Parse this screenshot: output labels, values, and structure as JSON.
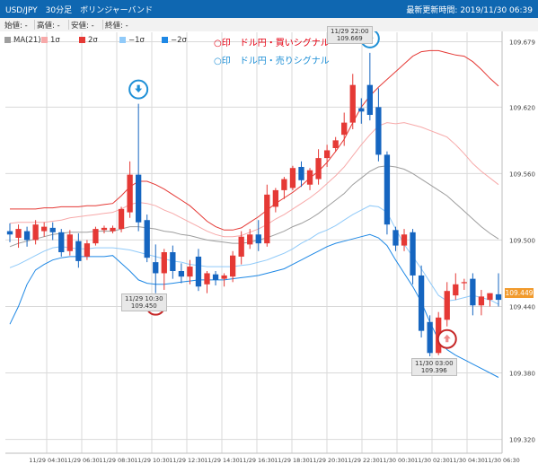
{
  "header": {
    "title": "USD/JPY　30分足　ボリンジャーバンド",
    "updated": "最新更新時間: 2019/11/30 06:39"
  },
  "ohlc": [
    {
      "label": "始値",
      "value": "-"
    },
    {
      "label": "高値",
      "value": "-"
    },
    {
      "label": "安値",
      "value": "-"
    },
    {
      "label": "終値",
      "value": "-"
    }
  ],
  "legend": [
    {
      "label": "MA(21)",
      "color": "#9e9e9e"
    },
    {
      "label": "1σ",
      "color": "#f7a9a9"
    },
    {
      "label": "2σ",
      "color": "#e53935"
    },
    {
      "label": "−1σ",
      "color": "#90caf9"
    },
    {
      "label": "−2σ",
      "color": "#1e88e5"
    }
  ],
  "signals": {
    "buy": "○印　ドル円・買いシグナル",
    "sell": "○印　ドル円・売りシグナル"
  },
  "callouts": [
    {
      "time": "11/29 22:00",
      "price": "109.669"
    },
    {
      "time": "11/29 10:30",
      "price": "109.450"
    },
    {
      "time": "11/30 03:00",
      "price": "109.396"
    }
  ],
  "current_price": "109.449",
  "chart_data": {
    "type": "candlestick",
    "x_tick_labels": [
      "11/29 04:30",
      "11/29 06:30",
      "11/29 08:30",
      "11/29 10:30",
      "11/29 12:30",
      "11/29 14:30",
      "11/29 16:30",
      "11/29 18:30",
      "11/29 20:30",
      "11/29 22:30",
      "11/30 00:30",
      "11/30 02:30",
      "11/30 04:30",
      "11/30 06:30"
    ],
    "y_tick_labels": [
      "109.679",
      "109.620",
      "109.560",
      "109.500",
      "109.440",
      "109.380",
      "109.320"
    ],
    "ylim": [
      109.3075,
      109.7005
    ],
    "up_color": "#e53935",
    "down_color": "#1565c0",
    "candles": [
      {
        "o": 109.508,
        "h": 109.515,
        "l": 109.498,
        "c": 109.505
      },
      {
        "o": 109.502,
        "h": 109.514,
        "l": 109.493,
        "c": 109.51
      },
      {
        "o": 109.508,
        "h": 109.512,
        "l": 109.494,
        "c": 109.5
      },
      {
        "o": 109.5,
        "h": 109.518,
        "l": 109.496,
        "c": 109.514
      },
      {
        "o": 109.508,
        "h": 109.516,
        "l": 109.503,
        "c": 109.512
      },
      {
        "o": 109.511,
        "h": 109.516,
        "l": 109.5,
        "c": 109.507
      },
      {
        "o": 109.507,
        "h": 109.51,
        "l": 109.485,
        "c": 109.489
      },
      {
        "o": 109.49,
        "h": 109.509,
        "l": 109.486,
        "c": 109.505
      },
      {
        "o": 109.499,
        "h": 109.506,
        "l": 109.475,
        "c": 109.481
      },
      {
        "o": 109.485,
        "h": 109.5,
        "l": 109.482,
        "c": 109.497
      },
      {
        "o": 109.497,
        "h": 109.512,
        "l": 109.495,
        "c": 109.51
      },
      {
        "o": 109.509,
        "h": 109.513,
        "l": 109.506,
        "c": 109.511
      },
      {
        "o": 109.508,
        "h": 109.513,
        "l": 109.506,
        "c": 109.511
      },
      {
        "o": 109.51,
        "h": 109.53,
        "l": 109.507,
        "c": 109.528
      },
      {
        "o": 109.525,
        "h": 109.571,
        "l": 109.52,
        "c": 109.559
      },
      {
        "o": 109.559,
        "h": 109.623,
        "l": 109.508,
        "c": 109.516
      },
      {
        "o": 109.518,
        "h": 109.523,
        "l": 109.48,
        "c": 109.484
      },
      {
        "o": 109.48,
        "h": 109.496,
        "l": 109.452,
        "c": 109.47
      },
      {
        "o": 109.47,
        "h": 109.492,
        "l": 109.455,
        "c": 109.489
      },
      {
        "o": 109.489,
        "h": 109.495,
        "l": 109.465,
        "c": 109.472
      },
      {
        "o": 109.472,
        "h": 109.479,
        "l": 109.461,
        "c": 109.467
      },
      {
        "o": 109.467,
        "h": 109.482,
        "l": 109.46,
        "c": 109.476
      },
      {
        "o": 109.485,
        "h": 109.492,
        "l": 109.454,
        "c": 109.458
      },
      {
        "o": 109.46,
        "h": 109.472,
        "l": 109.452,
        "c": 109.47
      },
      {
        "o": 109.469,
        "h": 109.472,
        "l": 109.459,
        "c": 109.464
      },
      {
        "o": 109.465,
        "h": 109.47,
        "l": 109.458,
        "c": 109.468
      },
      {
        "o": 109.467,
        "h": 109.49,
        "l": 109.462,
        "c": 109.486
      },
      {
        "o": 109.485,
        "h": 109.508,
        "l": 109.478,
        "c": 109.503
      },
      {
        "o": 109.496,
        "h": 109.51,
        "l": 109.492,
        "c": 109.505
      },
      {
        "o": 109.505,
        "h": 109.518,
        "l": 109.49,
        "c": 109.497
      },
      {
        "o": 109.497,
        "h": 109.55,
        "l": 109.494,
        "c": 109.541
      },
      {
        "o": 109.53,
        "h": 109.547,
        "l": 109.525,
        "c": 109.545
      },
      {
        "o": 109.545,
        "h": 109.557,
        "l": 109.537,
        "c": 109.555
      },
      {
        "o": 109.547,
        "h": 109.567,
        "l": 109.545,
        "c": 109.565
      },
      {
        "o": 109.566,
        "h": 109.571,
        "l": 109.548,
        "c": 109.554
      },
      {
        "o": 109.55,
        "h": 109.565,
        "l": 109.545,
        "c": 109.563
      },
      {
        "o": 109.555,
        "h": 109.582,
        "l": 109.55,
        "c": 109.574
      },
      {
        "o": 109.574,
        "h": 109.586,
        "l": 109.566,
        "c": 109.581
      },
      {
        "o": 109.583,
        "h": 109.593,
        "l": 109.58,
        "c": 109.59
      },
      {
        "o": 109.595,
        "h": 109.615,
        "l": 109.585,
        "c": 109.606
      },
      {
        "o": 109.606,
        "h": 109.65,
        "l": 109.6,
        "c": 109.64
      },
      {
        "o": 109.619,
        "h": 109.628,
        "l": 109.605,
        "c": 109.616
      },
      {
        "o": 109.64,
        "h": 109.669,
        "l": 109.608,
        "c": 109.613
      },
      {
        "o": 109.62,
        "h": 109.637,
        "l": 109.571,
        "c": 109.577
      },
      {
        "o": 109.577,
        "h": 109.58,
        "l": 109.505,
        "c": 109.514
      },
      {
        "o": 109.509,
        "h": 109.512,
        "l": 109.49,
        "c": 109.495
      },
      {
        "o": 109.495,
        "h": 109.51,
        "l": 109.49,
        "c": 109.505
      },
      {
        "o": 109.507,
        "h": 109.51,
        "l": 109.46,
        "c": 109.468
      },
      {
        "o": 109.468,
        "h": 109.477,
        "l": 109.412,
        "c": 109.418
      },
      {
        "o": 109.426,
        "h": 109.432,
        "l": 109.395,
        "c": 109.398
      },
      {
        "o": 109.398,
        "h": 109.435,
        "l": 109.396,
        "c": 109.43
      },
      {
        "o": 109.428,
        "h": 109.462,
        "l": 109.422,
        "c": 109.454
      },
      {
        "o": 109.45,
        "h": 109.47,
        "l": 109.446,
        "c": 109.46
      },
      {
        "o": 109.461,
        "h": 109.465,
        "l": 109.455,
        "c": 109.462
      },
      {
        "o": 109.465,
        "h": 109.47,
        "l": 109.432,
        "c": 109.441
      },
      {
        "o": 109.441,
        "h": 109.455,
        "l": 109.432,
        "c": 109.449
      },
      {
        "o": 109.446,
        "h": 109.452,
        "l": 109.44,
        "c": 109.452
      },
      {
        "o": 109.451,
        "h": 109.47,
        "l": 109.44,
        "c": 109.446
      }
    ],
    "series": [
      {
        "name": "MA(21)",
        "color": "#9e9e9e",
        "values": [
          109.494,
          109.497,
          109.499,
          109.501,
          109.503,
          109.505,
          109.506,
          109.507,
          109.507,
          109.507,
          109.508,
          109.508,
          109.508,
          109.51,
          109.512,
          109.512,
          109.511,
          109.51,
          109.508,
          109.507,
          109.505,
          109.504,
          109.502,
          109.5,
          109.499,
          109.498,
          109.497,
          109.497,
          109.498,
          109.5,
          109.502,
          109.505,
          109.508,
          109.512,
          109.515,
          109.519,
          109.524,
          109.53,
          109.536,
          109.542,
          109.55,
          109.556,
          109.562,
          109.566,
          109.567,
          109.566,
          109.564,
          109.56,
          109.555,
          109.55,
          109.545,
          109.54,
          109.533,
          109.526,
          109.519,
          109.512,
          109.506,
          109.501
        ]
      },
      {
        "name": "1σ",
        "color": "#f7a9a9",
        "values": [
          109.515,
          109.516,
          109.516,
          109.516,
          109.516,
          109.517,
          109.518,
          109.52,
          109.521,
          109.522,
          109.523,
          109.524,
          109.525,
          109.528,
          109.532,
          109.534,
          109.533,
          109.531,
          109.527,
          109.524,
          109.52,
          109.516,
          109.512,
          109.508,
          109.505,
          109.503,
          109.503,
          109.504,
          109.507,
          109.51,
          109.514,
          109.519,
          109.523,
          109.528,
          109.533,
          109.538,
          109.544,
          109.551,
          109.558,
          109.566,
          109.576,
          109.586,
          109.595,
          109.603,
          109.606,
          109.605,
          109.606,
          109.604,
          109.602,
          109.599,
          109.596,
          109.593,
          109.586,
          109.578,
          109.569,
          109.562,
          109.556,
          109.55
        ]
      },
      {
        "name": "2σ",
        "color": "#e53935",
        "values": [
          109.528,
          109.528,
          109.528,
          109.528,
          109.529,
          109.529,
          109.53,
          109.53,
          109.53,
          109.531,
          109.531,
          109.532,
          109.533,
          109.54,
          109.548,
          109.553,
          109.553,
          109.55,
          109.546,
          109.541,
          109.536,
          109.531,
          109.524,
          109.517,
          109.512,
          109.509,
          109.509,
          109.511,
          109.516,
          109.521,
          109.527,
          109.533,
          109.538,
          109.543,
          109.549,
          109.556,
          109.562,
          109.57,
          109.58,
          109.591,
          109.606,
          109.62,
          109.63,
          109.638,
          109.645,
          109.652,
          109.659,
          109.666,
          109.67,
          109.671,
          109.671,
          109.669,
          109.667,
          109.666,
          109.661,
          109.654,
          109.646,
          109.639
        ]
      },
      {
        "name": "−1σ",
        "color": "#90caf9",
        "values": [
          109.475,
          109.478,
          109.482,
          109.486,
          109.49,
          109.493,
          109.494,
          109.493,
          109.492,
          109.492,
          109.493,
          109.493,
          109.493,
          109.492,
          109.491,
          109.489,
          109.487,
          109.485,
          109.483,
          109.481,
          109.48,
          109.478,
          109.477,
          109.476,
          109.476,
          109.476,
          109.476,
          109.477,
          109.478,
          109.48,
          109.482,
          109.485,
          109.488,
          109.492,
          109.497,
          109.501,
          109.506,
          109.509,
          109.513,
          109.518,
          109.523,
          109.527,
          109.531,
          109.53,
          109.525,
          109.51,
          109.496,
          109.485,
          109.474,
          109.462,
          109.45,
          109.445,
          109.446,
          109.448,
          109.45,
          109.448,
          109.446,
          109.442
        ]
      },
      {
        "name": "−2σ",
        "color": "#1e88e5",
        "values": [
          109.424,
          109.44,
          109.46,
          109.473,
          109.478,
          109.482,
          109.484,
          109.485,
          109.485,
          109.485,
          109.485,
          109.485,
          109.486,
          109.479,
          109.472,
          109.464,
          109.461,
          109.46,
          109.46,
          109.461,
          109.462,
          109.463,
          109.464,
          109.464,
          109.464,
          109.464,
          109.465,
          109.466,
          109.467,
          109.468,
          109.47,
          109.472,
          109.474,
          109.478,
          109.482,
          109.486,
          109.49,
          109.494,
          109.497,
          109.499,
          109.501,
          109.503,
          109.505,
          109.502,
          109.495,
          109.482,
          109.47,
          109.458,
          109.444,
          109.426,
          109.41,
          109.401,
          109.396,
          109.392,
          109.388,
          109.384,
          109.38,
          109.376
        ]
      }
    ],
    "signals": [
      {
        "type": "sell",
        "index": 15
      },
      {
        "type": "buy",
        "index": 17
      },
      {
        "type": "sell",
        "index": 42
      },
      {
        "type": "buy",
        "index": 51
      }
    ]
  }
}
